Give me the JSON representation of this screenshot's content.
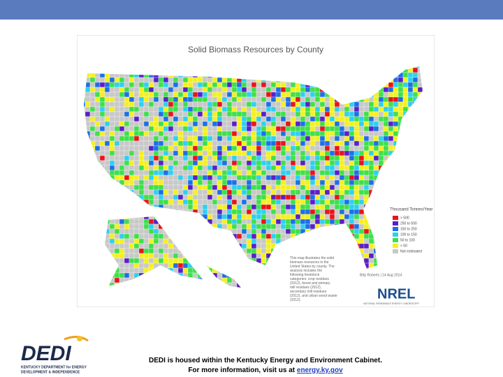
{
  "map": {
    "title": "Solid Biomass Resources by County",
    "legend": {
      "title": "Thousand Tonnes/Year",
      "items": [
        {
          "label": "> 500",
          "color": "#e8141c"
        },
        {
          "label": "250 to 500",
          "color": "#5a1fc8"
        },
        {
          "label": "150 to 250",
          "color": "#1e6fe6"
        },
        {
          "label": "100 to 150",
          "color": "#2ed0f0"
        },
        {
          "label": "50 to 100",
          "color": "#3ee04a"
        },
        {
          "label": "< 50",
          "color": "#f4f020"
        },
        {
          "label": "Not estimated",
          "color": "#c8c8c8"
        }
      ]
    },
    "note": "This map illustrates the solid biomass resources in the United States by county. The analysis includes the following feedstock categories: crop residues (2012), forest and primary mill residues (2012), secondary mill residues (2012), and urban wood waste (2012).",
    "credit": "Billy Roberts | 14 Aug 2014",
    "org": "NREL",
    "org_sub": "NATIONAL RENEWABLE ENERGY LABORATORY"
  },
  "footer": {
    "line1": "DEDI is housed within the Kentucky Energy and Environment Cabinet.",
    "line2": "For more information, visit us at ",
    "link": "energy.ky.gov"
  },
  "logo": {
    "text": "DEDI",
    "sub1": "KENTUCKY DEPARTMENT for ENERGY",
    "sub2": "DEVELOPMENT & INDEPENDENCE"
  }
}
